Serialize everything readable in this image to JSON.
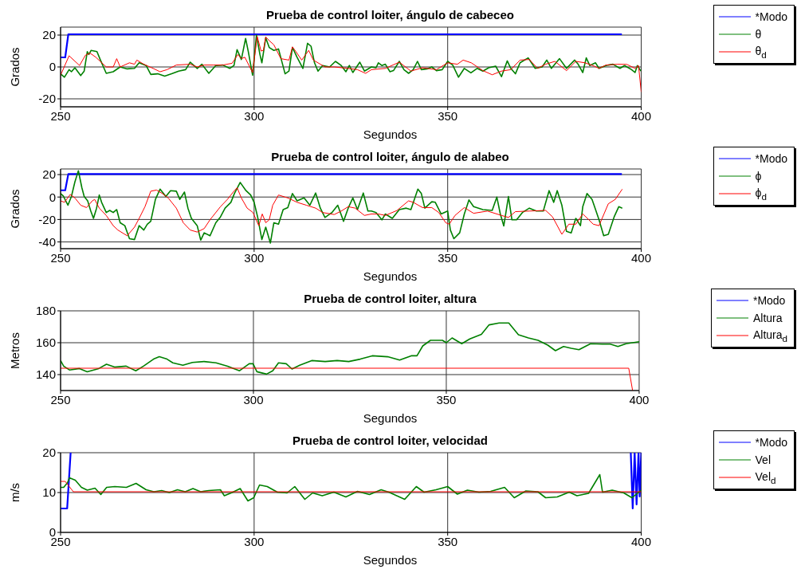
{
  "chart_data": [
    {
      "type": "line",
      "title": "Prueba de control loiter, ángulo de cabeceo",
      "xlabel": "Segundos",
      "ylabel": "Grados",
      "xlim": [
        250,
        400
      ],
      "xticks": [
        250,
        300,
        350,
        400
      ],
      "ylim": [
        -25,
        25
      ],
      "yticks": [
        -20,
        0,
        20
      ],
      "grid": true,
      "legend": "top right",
      "series": [
        {
          "name": "*Modo",
          "color": "#0000ff",
          "x": [
            250,
            251.2,
            252,
            395
          ],
          "values": [
            6,
            6,
            20.5,
            20.5
          ]
        },
        {
          "name": "θ",
          "color": "#008000",
          "x": [
            250.0,
            251.0,
            252.2,
            252.8,
            253.7,
            255.2,
            256.1,
            256.9,
            257.3,
            257.9,
            259.4,
            260.3,
            261.8,
            263.6,
            265.4,
            267.2,
            269.1,
            270.3,
            272.1,
            273.3,
            275.1,
            276.9,
            278.7,
            280.5,
            282.3,
            283.5,
            285.3,
            286.5,
            288.3,
            290.1,
            291.9,
            293.7,
            294.8,
            295.6,
            296.7,
            297.8,
            298.5,
            299.6,
            300.6,
            301.5,
            302.0,
            303.0,
            303.9,
            305.1,
            306.3,
            308.0,
            309.0,
            309.9,
            311.1,
            312.6,
            313.8,
            314.7,
            315.6,
            316.5,
            317.7,
            319.5,
            321.0,
            322.5,
            323.7,
            324.6,
            325.5,
            327.3,
            328.5,
            330.3,
            331.5,
            332.1,
            333.0,
            333.9,
            335.1,
            336.0,
            337.5,
            338.7,
            339.9,
            341.1,
            342.2,
            343.2,
            344.7,
            345.9,
            347.1,
            348.6,
            350.0,
            351.3,
            352.8,
            354.3,
            356.0,
            357.6,
            359.1,
            360.6,
            362.4,
            363.9,
            365.4,
            366.3,
            367.5,
            368.7,
            370.8,
            372.6,
            374.4,
            375.6,
            376.8,
            378.9,
            380.7,
            382.8,
            383.7,
            384.9,
            385.8,
            386.7,
            388.2,
            389.1,
            390.9,
            392.7,
            394.5,
            395.7,
            397.5,
            398.4,
            399.0,
            399.9
          ],
          "values": [
            -4.3,
            -6.4,
            -1.7,
            -3.0,
            -0.5,
            -5.4,
            -2.6,
            9.6,
            7.8,
            10.4,
            9.6,
            4.3,
            -4.0,
            -3.0,
            0,
            -1.2,
            -0.9,
            2.6,
            0.9,
            -4.7,
            -4.3,
            -5.7,
            -4.3,
            -2.6,
            -1.7,
            3.0,
            -0.9,
            1.7,
            -4.0,
            0.9,
            1.2,
            -0.9,
            0.9,
            10.9,
            4.7,
            17.9,
            9.6,
            -5.2,
            20.0,
            7.8,
            2.6,
            18.3,
            12.2,
            10.4,
            11.3,
            -4.3,
            -2.6,
            12.2,
            6.1,
            -0.9,
            14.8,
            13.0,
            2.6,
            -2.6,
            0.9,
            0,
            3.5,
            0.9,
            -3.0,
            0.9,
            -3.5,
            3.0,
            -2.6,
            0,
            -0.5,
            2.6,
            0.9,
            1.7,
            -3.0,
            -2.3,
            3.5,
            -1.7,
            -4.0,
            -1.7,
            3.5,
            -1.7,
            -1.2,
            0,
            -2.3,
            -1.7,
            3.5,
            1.2,
            -6.4,
            -0.9,
            -3.7,
            -0.9,
            -2.6,
            -0.5,
            0.5,
            -6.1,
            3.8,
            -0.9,
            -4.3,
            2.6,
            5.7,
            -0.9,
            0,
            4.3,
            -0.9,
            5.2,
            -0.9,
            4.3,
            1.7,
            -3.5,
            5.7,
            0.9,
            2.6,
            -0.9,
            0.9,
            1.7,
            -0.9,
            0.9,
            -1.7,
            -3.5,
            0.9,
            -2.6
          ]
        },
        {
          "name": "θ$_{d}$",
          "color": "#ff0000",
          "x": [
            250.0,
            252.2,
            254.9,
            256.4,
            257.6,
            259.1,
            261.8,
            263.6,
            264.5,
            265.4,
            267.8,
            269.1,
            269.7,
            271.5,
            273.9,
            275.7,
            277.5,
            279.9,
            283.5,
            285.3,
            287.1,
            289.5,
            291.9,
            294.3,
            295.8,
            296.7,
            297.6,
            299.6,
            300.8,
            301.8,
            302.4,
            303.0,
            303.9,
            305.1,
            306.9,
            309.0,
            309.9,
            310.8,
            312.3,
            314.1,
            315.3,
            318.3,
            320.7,
            324.3,
            326.7,
            328.8,
            330.3,
            333.9,
            337.5,
            340.5,
            343.5,
            347.1,
            350.0,
            352.5,
            354.0,
            356.1,
            359.1,
            361.5,
            363.9,
            366.3,
            368.7,
            371.1,
            373.2,
            375.3,
            377.7,
            380.7,
            383.1,
            385.5,
            387.9,
            389.1,
            390.9,
            393.9,
            396.3,
            398.4,
            399.3,
            400.0
          ],
          "values": [
            -5.2,
            7.0,
            0.9,
            7.3,
            8.7,
            6.1,
            0,
            0,
            5.2,
            0,
            2.6,
            1.7,
            4.3,
            1.7,
            -0.9,
            -3.0,
            -1.7,
            1.2,
            1.7,
            0,
            1.2,
            1.2,
            1.2,
            2.3,
            7.8,
            5.2,
            6.1,
            -3.5,
            19.1,
            10.0,
            10.4,
            18.8,
            16.5,
            13.9,
            5.2,
            4.3,
            12.6,
            9.6,
            4.3,
            10.4,
            4.3,
            0,
            0,
            -0.9,
            -1.7,
            -4.0,
            -1.7,
            -0.9,
            3.0,
            -2.6,
            -0.5,
            -1.7,
            2.6,
            1.7,
            4.3,
            2.6,
            -2.3,
            -4.9,
            -2.6,
            -1.7,
            4.3,
            4.7,
            -0.9,
            1.7,
            3.5,
            -2.3,
            3.5,
            2.6,
            0.5,
            -0.9,
            1.2,
            1.7,
            1.6,
            -0.9,
            0.9,
            -15.7
          ]
        }
      ]
    },
    {
      "type": "line",
      "title": "Prueba de control loiter, ángulo de alabeo",
      "xlabel": "Segundos",
      "ylabel": "Grados",
      "xlim": [
        250,
        400
      ],
      "xticks": [
        250,
        300,
        350,
        400
      ],
      "ylim": [
        -46,
        25
      ],
      "yticks": [
        -40,
        -20,
        0,
        20
      ],
      "grid": true,
      "legend": "top right",
      "series": [
        {
          "name": "*Modo",
          "color": "#0000ff",
          "x": [
            250,
            251.2,
            252,
            395
          ],
          "values": [
            6,
            6,
            20.5,
            20.5
          ]
        },
        {
          "name": "ϕ",
          "color": "#008000",
          "x": [
            250.0,
            250.7,
            251.9,
            252.8,
            253.7,
            254.6,
            255.5,
            256.1,
            257.0,
            257.8,
            258.5,
            259.3,
            260.0,
            260.6,
            261.8,
            262.7,
            263.6,
            264.5,
            265.4,
            266.6,
            267.8,
            269.1,
            270.3,
            271.5,
            272.4,
            273.3,
            274.5,
            275.7,
            277.2,
            278.4,
            279.9,
            280.8,
            282.0,
            282.9,
            283.8,
            285.3,
            286.2,
            287.1,
            288.6,
            290.1,
            291.3,
            292.5,
            294.0,
            294.9,
            296.4,
            297.9,
            299.1,
            300.0,
            300.9,
            302.0,
            303.0,
            304.2,
            305.1,
            306.3,
            307.5,
            308.7,
            309.9,
            311.1,
            312.9,
            314.4,
            315.9,
            317.1,
            318.3,
            320.1,
            321.6,
            323.1,
            324.3,
            325.5,
            326.7,
            328.2,
            329.4,
            330.3,
            331.5,
            333.0,
            333.9,
            335.7,
            337.5,
            339.3,
            340.5,
            342.3,
            343.2,
            344.1,
            345.9,
            346.8,
            348.3,
            350.0,
            350.7,
            351.6,
            353.1,
            354.3,
            355.5,
            356.7,
            359.1,
            361.5,
            362.7,
            363.6,
            364.5,
            365.7,
            366.6,
            367.8,
            369.3,
            371.1,
            372.9,
            374.7,
            376.2,
            377.4,
            378.3,
            379.5,
            380.7,
            381.9,
            383.1,
            384.3,
            384.9,
            386.0,
            387.3,
            389.1,
            390.3,
            391.5,
            393.0,
            394.2,
            395.1
          ],
          "values": [
            3.1,
            1.0,
            -7.3,
            0.5,
            13.5,
            23.4,
            8.3,
            0.5,
            -3.4,
            -12.5,
            -19.0,
            -9.9,
            1.8,
            -4.7,
            -13.8,
            -11.9,
            -13.8,
            -11.2,
            -22.9,
            -25.5,
            -37.1,
            -37.9,
            -25.5,
            -29.4,
            -24.2,
            -21.6,
            -2.1,
            7.0,
            0.5,
            5.7,
            5.2,
            -2.1,
            4.4,
            -9.9,
            -19.0,
            -25.5,
            -38.4,
            -31.9,
            -34.5,
            -22.9,
            -17.7,
            -9.9,
            -4.7,
            3.1,
            13.0,
            5.7,
            1.8,
            -4.7,
            -17.7,
            -37.9,
            -26.8,
            -41.0,
            -22.9,
            -24.2,
            -11.2,
            -9.4,
            3.1,
            -3.4,
            -0.8,
            -7.3,
            3.6,
            -9.9,
            -18.2,
            -13.8,
            -7.3,
            -21.6,
            -9.9,
            -0.8,
            -11.2,
            3.6,
            -12.5,
            -12.5,
            -13.8,
            -20.3,
            -15.1,
            -19.0,
            -11.2,
            -9.9,
            -11.2,
            7.0,
            3.1,
            -9.9,
            -4.2,
            -4.7,
            -15.1,
            -12.5,
            -29.4,
            -37.1,
            -31.9,
            -15.1,
            -2.6,
            -8.6,
            -11.2,
            -11.9,
            0,
            -15.1,
            -25.7,
            0.5,
            -20.3,
            -20.3,
            -13.8,
            -9.9,
            -12.5,
            -12.5,
            5.7,
            -4.7,
            5.7,
            -7.3,
            -30.6,
            -31.9,
            -19.0,
            -25.5,
            -8.6,
            3.1,
            -2.1,
            -20.3,
            -34.5,
            -33.2,
            -17.7,
            -8.6,
            -9.9
          ]
        },
        {
          "name": "ϕ$_{d}$",
          "color": "#ff0000",
          "x": [
            250.0,
            251.0,
            252.5,
            253.7,
            255.2,
            256.7,
            258.2,
            258.8,
            260.0,
            261.8,
            263.6,
            264.8,
            267.2,
            269.1,
            270.3,
            271.8,
            273.3,
            274.8,
            276.3,
            277.8,
            279.9,
            281.7,
            283.5,
            285.3,
            287.1,
            288.6,
            291.3,
            293.1,
            294.6,
            295.6,
            296.7,
            298.2,
            299.7,
            301.2,
            302.1,
            303.0,
            303.9,
            304.8,
            306.3,
            308.7,
            311.1,
            313.5,
            315.9,
            317.7,
            320.7,
            322.5,
            324.3,
            326.1,
            328.5,
            330.3,
            332.1,
            333.9,
            336.9,
            339.9,
            341.1,
            343.5,
            345.9,
            347.7,
            349.5,
            350.4,
            351.9,
            354.3,
            356.7,
            360.3,
            363.9,
            365.7,
            367.5,
            371.1,
            375.3,
            377.1,
            379.5,
            381.3,
            383.1,
            384.9,
            386.1,
            387.6,
            389.1,
            391.5,
            393.3,
            395.1
          ],
          "values": [
            -3.4,
            -4.7,
            2.3,
            -0.8,
            -7.3,
            -9.4,
            -3.4,
            -2.1,
            -9.9,
            -16.4,
            -25.5,
            -29.4,
            -34.5,
            -26.8,
            -19.0,
            -8.6,
            5.2,
            6.2,
            3.1,
            -0.8,
            -9.9,
            -22.9,
            -29.4,
            -31.2,
            -28.1,
            -20.3,
            -8.6,
            -2.1,
            4.4,
            8.3,
            -0.8,
            -9.9,
            -13.8,
            -25.5,
            -15.1,
            -22.9,
            -20.3,
            -7.3,
            1.8,
            -0.8,
            -4.7,
            -7.3,
            -9.9,
            -13.8,
            -15.6,
            -12.5,
            -8.6,
            -9.9,
            -16.4,
            -15.1,
            -15.1,
            -16.4,
            -12.0,
            -3.4,
            -4.7,
            -9.4,
            -9.4,
            -13.8,
            -22.9,
            -24.2,
            -16.4,
            -9.4,
            -14.5,
            -12.5,
            -16.4,
            -18.2,
            -13.0,
            -12.5,
            -11.9,
            -17.7,
            -33.2,
            -24.2,
            -24.2,
            -15.1,
            -19.0,
            -24.2,
            -25.5,
            -6.0,
            -2.1,
            7.0
          ]
        }
      ]
    },
    {
      "type": "line",
      "title": "Prueba de control loiter, altura",
      "xlabel": "Segundos",
      "ylabel": "Metros",
      "xlim": [
        250,
        400
      ],
      "xticks": [
        250,
        300,
        350,
        400
      ],
      "ylim": [
        130,
        180
      ],
      "yticks": [
        140,
        160,
        180
      ],
      "grid": true,
      "legend": "top right",
      "series": [
        {
          "name": "*Modo",
          "color": "#0000ff"
        },
        {
          "name": "Altura",
          "color": "#008000",
          "x": [
            250.0,
            250.8,
            252.3,
            254.9,
            256.9,
            259.9,
            261.9,
            264.0,
            267.0,
            269.5,
            271.5,
            274.1,
            275.6,
            277.6,
            279.1,
            281.7,
            284.2,
            287.2,
            290.3,
            293.3,
            296.4,
            298.9,
            299.9,
            300.9,
            303.4,
            305.0,
            306.5,
            308.5,
            310.0,
            312.0,
            315.1,
            318.6,
            321.7,
            324.7,
            327.7,
            330.8,
            334.8,
            337.9,
            340.9,
            342.4,
            343.9,
            345.9,
            349.0,
            350.0,
            351.5,
            354.0,
            356.1,
            359.1,
            361.1,
            363.7,
            366.2,
            368.7,
            371.3,
            373.8,
            376.3,
            378.3,
            380.4,
            382.4,
            384.4,
            387.4,
            390.5,
            392.5,
            394.5,
            396.6,
            400.0
          ],
          "values": [
            148.8,
            145.3,
            142.9,
            143.8,
            141.8,
            143.8,
            146.5,
            144.7,
            145.3,
            142.4,
            145.3,
            149.7,
            151.2,
            149.7,
            147.4,
            145.9,
            147.6,
            148.2,
            147.4,
            145.3,
            142.4,
            146.8,
            146.8,
            141.8,
            140.3,
            142.4,
            147.4,
            146.8,
            143.5,
            145.9,
            148.8,
            148.2,
            148.8,
            148.2,
            149.7,
            151.8,
            151.2,
            149.1,
            151.8,
            151.8,
            158.0,
            161.5,
            161.5,
            160.0,
            163.0,
            159.4,
            162.4,
            165.3,
            171.2,
            172.4,
            172.4,
            165.0,
            163.0,
            161.5,
            158.5,
            155.0,
            157.6,
            156.5,
            155.6,
            159.4,
            159.1,
            159.1,
            157.6,
            159.4,
            160.6
          ]
        },
        {
          "name": "Altura$_{d}$",
          "color": "#ff0000",
          "x": [
            250,
            397.3,
            398.3
          ],
          "values": [
            144,
            144,
            130
          ]
        }
      ]
    },
    {
      "type": "line",
      "title": "Prueba de control loiter, velocidad",
      "xlabel": "Segundos",
      "ylabel": "m/s",
      "xlim": [
        250,
        400
      ],
      "xticks": [
        250,
        300,
        350,
        400
      ],
      "ylim": [
        0,
        20
      ],
      "yticks": [
        0,
        10,
        20
      ],
      "grid": true,
      "legend": "top right",
      "series": [
        {
          "name": "*Modo",
          "color": "#0000ff",
          "x": [
            250,
            251.7,
            252.6,
            300,
            397.3,
            397.8,
            398.3,
            398.8,
            399.3,
            399.6,
            400
          ],
          "values": [
            6,
            6,
            20,
            null,
            20,
            6,
            20,
            7,
            20,
            9,
            20
          ]
        },
        {
          "name": "Vel",
          "color": "#008000",
          "x": [
            250.0,
            250.8,
            251.8,
            252.3,
            253.8,
            255.4,
            256.9,
            258.9,
            260.4,
            261.9,
            264.0,
            267.0,
            269.5,
            272.1,
            274.1,
            276.1,
            278.1,
            280.2,
            282.2,
            284.2,
            286.2,
            288.3,
            291.3,
            292.3,
            294.3,
            296.4,
            298.4,
            299.9,
            301.4,
            303.4,
            306.0,
            308.5,
            310.5,
            313.1,
            315.1,
            317.6,
            320.6,
            323.7,
            326.7,
            329.8,
            332.8,
            334.8,
            338.9,
            341.9,
            343.9,
            347.0,
            350.0,
            352.5,
            355.1,
            358.1,
            361.1,
            364.7,
            367.2,
            370.2,
            373.3,
            375.3,
            378.3,
            381.4,
            383.4,
            386.4,
            389.3,
            390.0,
            392.5,
            395.5,
            397.6,
            400.0
          ],
          "values": [
            11.3,
            11.3,
            12.5,
            13.7,
            13.1,
            11.3,
            10.6,
            11.1,
            9.5,
            11.3,
            11.5,
            11.3,
            12.3,
            10.7,
            10.2,
            10.5,
            10.0,
            10.7,
            10.2,
            11.0,
            10.2,
            10.5,
            10.7,
            9.2,
            10.0,
            11.0,
            7.9,
            8.7,
            11.9,
            11.5,
            10.1,
            9.9,
            11.5,
            8.3,
            9.9,
            9.2,
            10.1,
            8.9,
            10.3,
            9.5,
            10.7,
            10.1,
            8.3,
            11.5,
            10.1,
            10.7,
            11.5,
            9.6,
            10.6,
            10.1,
            10.3,
            11.3,
            8.7,
            10.4,
            10.2,
            8.7,
            8.9,
            10.1,
            9.2,
            9.8,
            14.5,
            10.1,
            10.6,
            9.9,
            8.7,
            10.6
          ]
        },
        {
          "name": "Vel$_{d}$",
          "color": "#ff0000",
          "x": [
            250,
            251.2,
            253.3,
            400
          ],
          "values": [
            12.8,
            12.8,
            10.2,
            10.2
          ]
        }
      ]
    }
  ]
}
